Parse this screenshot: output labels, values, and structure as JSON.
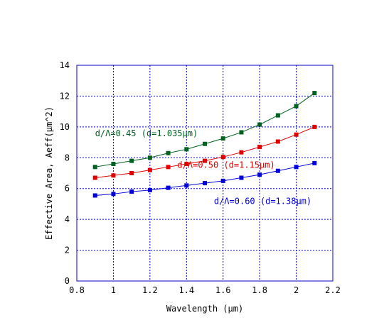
{
  "chart_data": {
    "type": "line",
    "title": "",
    "xlabel": "Wavelength (μm)",
    "ylabel": "Effective Area, Aeff(μm^2)",
    "xlim": [
      0.8,
      2.2
    ],
    "ylim": [
      0,
      14
    ],
    "xticks": [
      0.8,
      1,
      1.2,
      1.4,
      1.6,
      1.8,
      2,
      2.2
    ],
    "yticks": [
      0,
      2,
      4,
      6,
      8,
      10,
      12,
      14
    ],
    "xtick_labels": [
      "0.8",
      "1",
      "1.2",
      "1.4",
      "1.6",
      "1.8",
      "2",
      "2.2"
    ],
    "ytick_labels": [
      "0",
      "2",
      "4",
      "6",
      "8",
      "10",
      "12",
      "14"
    ],
    "grid": true,
    "x": [
      0.9,
      1.0,
      1.1,
      1.2,
      1.3,
      1.4,
      1.5,
      1.6,
      1.7,
      1.8,
      1.9,
      2.0,
      2.1
    ],
    "series": [
      {
        "label": "d/Λ=0.45 (d=1.035μm)",
        "color": "#006020",
        "values": [
          7.4,
          7.6,
          7.8,
          8.0,
          8.3,
          8.55,
          8.9,
          9.25,
          9.65,
          10.15,
          10.75,
          11.35,
          12.2
        ]
      },
      {
        "label": "d/Λ=0.50 (d=1.15μm)",
        "color": "#e00000",
        "values": [
          6.7,
          6.85,
          7.0,
          7.2,
          7.4,
          7.6,
          7.8,
          8.05,
          8.35,
          8.7,
          9.05,
          9.5,
          10.0
        ]
      },
      {
        "label": "d/Λ=0.60 (d=1.38μm)",
        "color": "#0000dd",
        "values": [
          5.55,
          5.65,
          5.8,
          5.9,
          6.05,
          6.2,
          6.35,
          6.5,
          6.7,
          6.9,
          7.15,
          7.4,
          7.65
        ]
      }
    ],
    "annotations": [
      {
        "text": "d/Λ=0.45 (d=1.035μm)",
        "x": 0.9,
        "y": 9.4,
        "color": "#006020"
      },
      {
        "text": "d/Λ=0.50 (d=1.15μm)",
        "x": 1.35,
        "y": 7.35,
        "color": "#e00000"
      },
      {
        "text": "d/Λ=0.60 (d=1.38μm)",
        "x": 1.55,
        "y": 5.0,
        "color": "#0000dd"
      }
    ]
  }
}
